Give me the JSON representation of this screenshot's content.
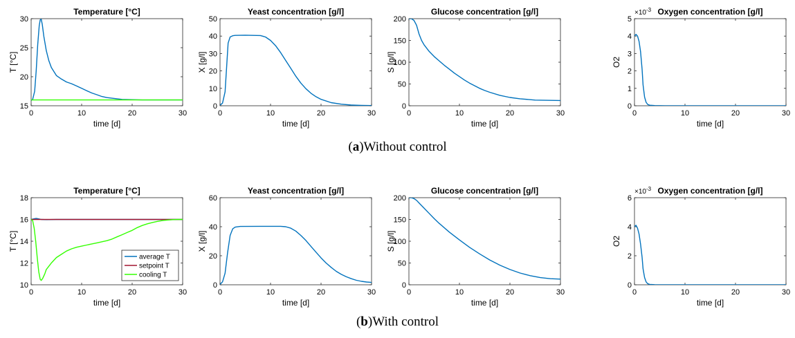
{
  "captions": [
    {
      "letter": "a",
      "text": "Without control"
    },
    {
      "letter": "b",
      "text": "With control"
    }
  ],
  "colors": {
    "blue": "#0072BD",
    "red": "#A2142F",
    "green": "#33FF00",
    "axis": "#262626"
  },
  "chart_data": [
    {
      "type": "line",
      "row": 0,
      "title": "Temperature [°C]",
      "xlabel": "time [d]",
      "ylabel": "T [°C]",
      "xlim": [
        0,
        30
      ],
      "ylim": [
        15,
        30
      ],
      "xticks": [
        0,
        10,
        20,
        30
      ],
      "yticks": [
        15,
        20,
        25,
        30
      ],
      "series": [
        {
          "color": "#0072BD",
          "x": [
            0,
            0.3,
            0.7,
            1,
            1.3,
            1.6,
            1.8,
            2,
            2.2,
            2.5,
            3,
            3.5,
            4,
            5,
            6,
            7,
            8,
            9,
            10,
            11,
            12,
            13,
            14,
            15,
            16,
            17,
            18,
            20,
            22,
            25,
            30
          ],
          "y": [
            15.9,
            16.1,
            17.5,
            21,
            25.5,
            28.8,
            29.8,
            29.9,
            29,
            27,
            24.5,
            22.8,
            21.6,
            20.2,
            19.6,
            19.1,
            18.8,
            18.4,
            18,
            17.6,
            17.2,
            16.9,
            16.6,
            16.4,
            16.3,
            16.2,
            16.1,
            16.05,
            16,
            16,
            16
          ]
        },
        {
          "color": "#33FF00",
          "x": [
            0,
            30
          ],
          "y": [
            16,
            16
          ]
        }
      ]
    },
    {
      "type": "line",
      "row": 0,
      "title": "Yeast concentration [g/l]",
      "xlabel": "time [d]",
      "ylabel": "X [g/l]",
      "xlim": [
        0,
        30
      ],
      "ylim": [
        0,
        50
      ],
      "xticks": [
        0,
        10,
        20,
        30
      ],
      "yticks": [
        0,
        10,
        20,
        30,
        40,
        50
      ],
      "series": [
        {
          "color": "#0072BD",
          "x": [
            0,
            0.5,
            1,
            1.3,
            1.6,
            2,
            2.5,
            3,
            5,
            8,
            9,
            10,
            11,
            12,
            13,
            14,
            15,
            16,
            17,
            18,
            19,
            20,
            22,
            24,
            26,
            28,
            30
          ],
          "y": [
            0.3,
            1.5,
            8,
            22,
            36,
            39.5,
            40.2,
            40.4,
            40.5,
            40.3,
            39.5,
            37.5,
            34.5,
            30.5,
            26,
            21.5,
            17,
            13,
            9.8,
            7.2,
            5.2,
            3.7,
            1.8,
            0.9,
            0.4,
            0.2,
            0.1
          ]
        }
      ]
    },
    {
      "type": "line",
      "row": 0,
      "title": "Glucose concentration [g/l]",
      "xlabel": "time [d]",
      "ylabel": "S [g/l]",
      "xlim": [
        0,
        30
      ],
      "ylim": [
        0,
        200
      ],
      "xticks": [
        0,
        10,
        20,
        30
      ],
      "yticks": [
        0,
        50,
        100,
        150,
        200
      ],
      "series": [
        {
          "color": "#0072BD",
          "x": [
            0,
            0.5,
            1,
            1.5,
            2,
            2.5,
            3,
            4,
            5,
            6,
            7,
            8,
            9,
            10,
            11,
            12,
            13,
            14,
            15,
            16,
            18,
            20,
            22,
            25,
            30
          ],
          "y": [
            200,
            200,
            196,
            185,
            165,
            150,
            140,
            125,
            113,
            103,
            93,
            84,
            75,
            67,
            59,
            52,
            46,
            40,
            35,
            31,
            24,
            19,
            16,
            13,
            12
          ]
        }
      ]
    },
    {
      "type": "line",
      "row": 0,
      "title": "Oxygen concentration [g/l]",
      "xlabel": "time [d]",
      "ylabel": "O2",
      "exponent": "×10",
      "exponent_power": "-3",
      "xlim": [
        0,
        30
      ],
      "ylim": [
        0,
        5
      ],
      "xticks": [
        0,
        10,
        20,
        30
      ],
      "yticks": [
        0,
        1,
        2,
        3,
        4,
        5
      ],
      "series": [
        {
          "color": "#0072BD",
          "x": [
            0,
            0.3,
            0.6,
            0.9,
            1.2,
            1.5,
            1.7,
            2,
            2.3,
            2.6,
            3,
            4,
            6,
            10,
            20,
            30
          ],
          "y": [
            4,
            4.1,
            4,
            3.7,
            3.1,
            2.1,
            1.2,
            0.5,
            0.2,
            0.08,
            0.03,
            0.01,
            0,
            0,
            0,
            0
          ]
        }
      ]
    },
    {
      "type": "line",
      "row": 1,
      "title": "Temperature [°C]",
      "xlabel": "time [d]",
      "ylabel": "T [°C]",
      "xlim": [
        0,
        30
      ],
      "ylim": [
        10,
        18
      ],
      "xticks": [
        0,
        10,
        20,
        30
      ],
      "yticks": [
        10,
        12,
        14,
        16,
        18
      ],
      "legend": {
        "position": "lower-right",
        "entries": [
          "average T",
          "setpoint T",
          "cooling T"
        ]
      },
      "series": [
        {
          "name": "average T",
          "color": "#0072BD",
          "x": [
            0,
            0.5,
            1,
            1.5,
            2,
            3,
            5,
            30
          ],
          "y": [
            16,
            16.05,
            16.1,
            16.05,
            16,
            15.98,
            16,
            16
          ]
        },
        {
          "name": "setpoint T",
          "color": "#A2142F",
          "x": [
            0,
            30
          ],
          "y": [
            16,
            16
          ]
        },
        {
          "name": "cooling T",
          "color": "#33FF00",
          "x": [
            0,
            0.3,
            0.6,
            0.9,
            1.2,
            1.5,
            1.8,
            2,
            2.3,
            2.7,
            3,
            4,
            5,
            6,
            7,
            8,
            9,
            10,
            11,
            12,
            13,
            14,
            15,
            16,
            17,
            18,
            19,
            20,
            21,
            22,
            23,
            24,
            25,
            26,
            27,
            28,
            29,
            30
          ],
          "y": [
            16,
            15.9,
            15.2,
            14,
            12.5,
            11.2,
            10.5,
            10.4,
            10.6,
            11,
            11.4,
            12,
            12.5,
            12.8,
            13.1,
            13.3,
            13.45,
            13.55,
            13.65,
            13.75,
            13.85,
            13.95,
            14.05,
            14.2,
            14.4,
            14.6,
            14.8,
            15.0,
            15.25,
            15.45,
            15.6,
            15.72,
            15.82,
            15.9,
            15.95,
            15.98,
            16,
            16
          ]
        }
      ]
    },
    {
      "type": "line",
      "row": 1,
      "title": "Yeast concentration [g/l]",
      "xlabel": "time [d]",
      "ylabel": "X [g/l]",
      "xlim": [
        0,
        30
      ],
      "ylim": [
        0,
        60
      ],
      "xticks": [
        0,
        10,
        20,
        30
      ],
      "yticks": [
        0,
        20,
        40,
        60
      ],
      "series": [
        {
          "color": "#0072BD",
          "x": [
            0,
            0.5,
            1,
            1.5,
            2,
            2.5,
            3,
            4,
            8,
            12,
            13,
            14,
            15,
            16,
            17,
            18,
            19,
            20,
            21,
            22,
            23,
            24,
            25,
            26,
            27,
            28,
            29,
            30
          ],
          "y": [
            0.3,
            2,
            8,
            22,
            34,
            38.5,
            39.7,
            40.2,
            40.3,
            40.3,
            40,
            39,
            37,
            34,
            30.5,
            26.5,
            22.5,
            18.5,
            15,
            12,
            9.3,
            7.2,
            5.5,
            4.2,
            3.1,
            2.4,
            1.9,
            1.6
          ]
        }
      ]
    },
    {
      "type": "line",
      "row": 1,
      "title": "Glucose concentration [g/l]",
      "xlabel": "time [d]",
      "ylabel": "S [g/l]",
      "xlim": [
        0,
        30
      ],
      "ylim": [
        0,
        200
      ],
      "xticks": [
        0,
        10,
        20,
        30
      ],
      "yticks": [
        0,
        50,
        100,
        150,
        200
      ],
      "series": [
        {
          "color": "#0072BD",
          "x": [
            0,
            0.5,
            1,
            1.5,
            2,
            3,
            4,
            5,
            6,
            8,
            10,
            12,
            14,
            16,
            18,
            20,
            22,
            24,
            26,
            28,
            30
          ],
          "y": [
            200,
            200,
            198,
            194,
            188,
            176,
            164,
            152,
            141,
            121,
            103,
            86,
            71,
            57,
            45,
            35,
            27,
            21,
            16.5,
            14,
            13
          ]
        }
      ]
    },
    {
      "type": "line",
      "row": 1,
      "title": "Oxygen concentration [g/l]",
      "xlabel": "time [d]",
      "ylabel": "O2",
      "exponent": "×10",
      "exponent_power": "-3",
      "xlim": [
        0,
        30
      ],
      "ylim": [
        0,
        6
      ],
      "xticks": [
        0,
        10,
        20,
        30
      ],
      "yticks": [
        0,
        2,
        4,
        6
      ],
      "series": [
        {
          "color": "#0072BD",
          "x": [
            0,
            0.3,
            0.6,
            0.9,
            1.2,
            1.5,
            1.7,
            2,
            2.3,
            2.6,
            3,
            4,
            6,
            10,
            20,
            30
          ],
          "y": [
            4,
            4.1,
            3.9,
            3.5,
            2.8,
            1.9,
            1.1,
            0.5,
            0.2,
            0.08,
            0.03,
            0.01,
            0,
            0,
            0,
            0
          ]
        }
      ]
    }
  ]
}
